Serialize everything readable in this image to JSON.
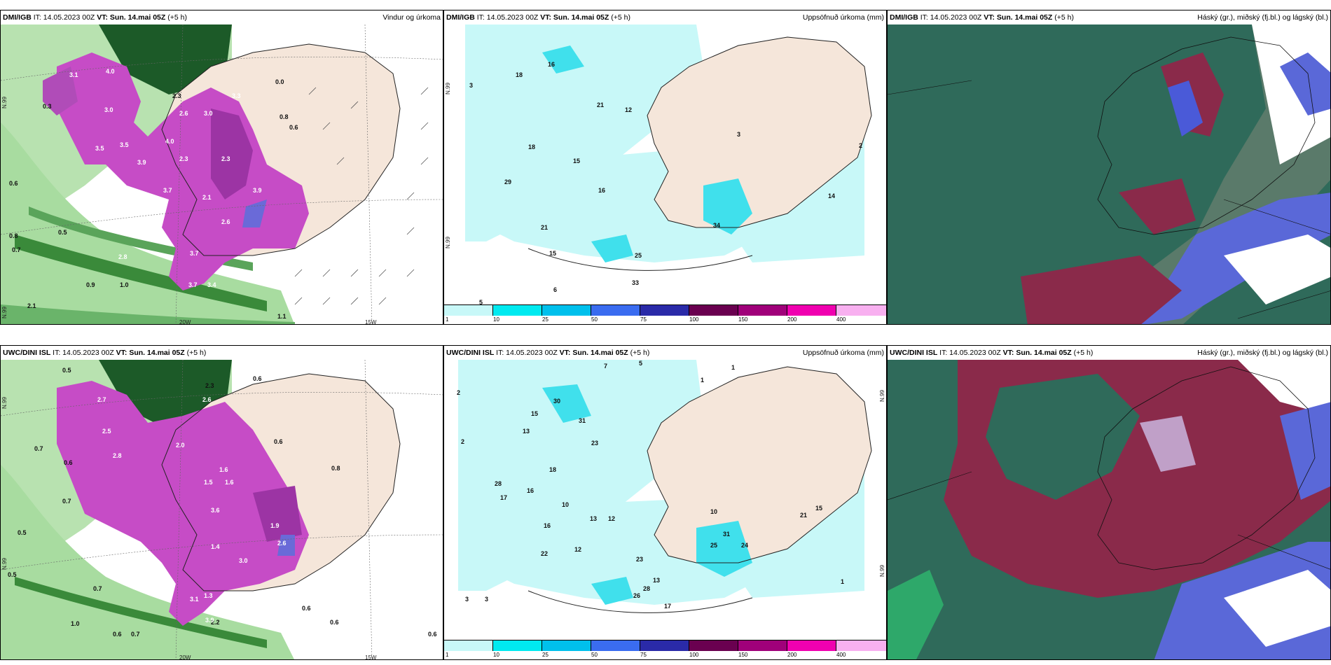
{
  "panels": [
    {
      "id": "p1",
      "model": "DMI/IGB",
      "it": " IT: 14.05.2023 00Z ",
      "vt_label": "VT: Sun. 14.mai 05Z",
      "lead": " (+5 h)",
      "title": "Vindur og úrkoma",
      "axis_labels": [
        "N.99",
        "N.99",
        "20W",
        "15W"
      ],
      "values": [
        "3.1",
        "4.0",
        "2.3",
        "3.0",
        "2.6",
        "3.0",
        "3.5",
        "3.3",
        "0.8",
        "0.6",
        "0.3",
        "3.5",
        "3.9",
        "2.3",
        "4.0",
        "2.3",
        "3.7",
        "2.1",
        "3.9",
        "2.6",
        "3.7",
        "0.6",
        "0.5",
        "0.8",
        "0.7",
        "2.8",
        "3.7",
        "0.9",
        "1.0",
        "3.4",
        "2.1",
        "1.1",
        "0.0"
      ]
    },
    {
      "id": "p2",
      "model": "DMI/IGB",
      "it": " IT: 14.05.2023 00Z ",
      "vt_label": "VT: Sun. 14.mai 05Z",
      "lead": " (+5 h)",
      "title": "Uppsöfnuð úrkoma (mm)",
      "axis_labels": [
        "N.99",
        "N.99"
      ],
      "values": [
        "3",
        "16",
        "18",
        "21",
        "12",
        "3",
        "18",
        "15",
        "29",
        "16",
        "21",
        "15",
        "25",
        "33",
        "34",
        "14",
        "6",
        "5",
        "2"
      ]
    },
    {
      "id": "p3",
      "model": "DMI/IGB",
      "it": " IT: 14.05.2023 00Z ",
      "vt_label": "VT: Sun. 14.mai 05Z",
      "lead": " (+5 h)",
      "title": "Háský (gr.), miðský (fj.bl.) og lágský (bl.)"
    },
    {
      "id": "p4",
      "model": "UWC/DINI ISL",
      "it": " IT: 14.05.2023 00Z ",
      "vt_label": "VT: Sun. 14.mai 05Z",
      "lead": " (+5 h)",
      "title": "",
      "axis_labels": [
        "N.99",
        "N.99",
        "20W",
        "15W"
      ],
      "values": [
        "0.5",
        "0.6",
        "2.7",
        "2.6",
        "2.3",
        "0.6",
        "1.6",
        "2.5",
        "2.8",
        "2.0",
        "1.5",
        "1.6",
        "3.6",
        "1.9",
        "2.6",
        "3.0",
        "1.4",
        "0.7",
        "0.6",
        "0.5",
        "0.8",
        "0.7",
        "0.5",
        "0.7",
        "1.0",
        "0.6",
        "0.7",
        "2.2",
        "0.6",
        "0.6",
        "1.3",
        "3.1",
        "3.9",
        "0.6"
      ]
    },
    {
      "id": "p5",
      "model": "UWC/DINI ISL",
      "it": " IT: 14.05.2023 00Z ",
      "vt_label": "VT: Sun. 14.mai 05Z",
      "lead": " (+5 h)",
      "title": "Uppsöfnuð úrkoma (mm)",
      "axis_labels": [
        "N.99",
        "N.99"
      ],
      "values": [
        "7",
        "5",
        "2",
        "1",
        "13",
        "15",
        "30",
        "31",
        "23",
        "28",
        "16",
        "13",
        "10",
        "12",
        "16",
        "18",
        "17",
        "22",
        "12",
        "23",
        "13",
        "26",
        "28",
        "17",
        "31",
        "25",
        "24",
        "15",
        "21",
        "10",
        "3",
        "3",
        "1",
        "1",
        "2"
      ]
    },
    {
      "id": "p6",
      "model": "UWC/DINI ISL",
      "it": " IT: 14.05.2023 00Z ",
      "vt_label": "VT: Sun. 14.mai 05Z",
      "lead": " (+5 h)",
      "title": "Háský (gr.), miðský (fj.bl.) og lágský (bl.)"
    }
  ],
  "colorbar": {
    "ticks": [
      "1",
      "10",
      "25",
      "50",
      "75",
      "100",
      "150",
      "200",
      "400"
    ],
    "colors": [
      "#c8f8f8",
      "#00eaf0",
      "#00c0ec",
      "#3a6cf0",
      "#2a2aa8",
      "#6a0050",
      "#a0007a",
      "#f000b0",
      "#f8b0f0"
    ]
  }
}
